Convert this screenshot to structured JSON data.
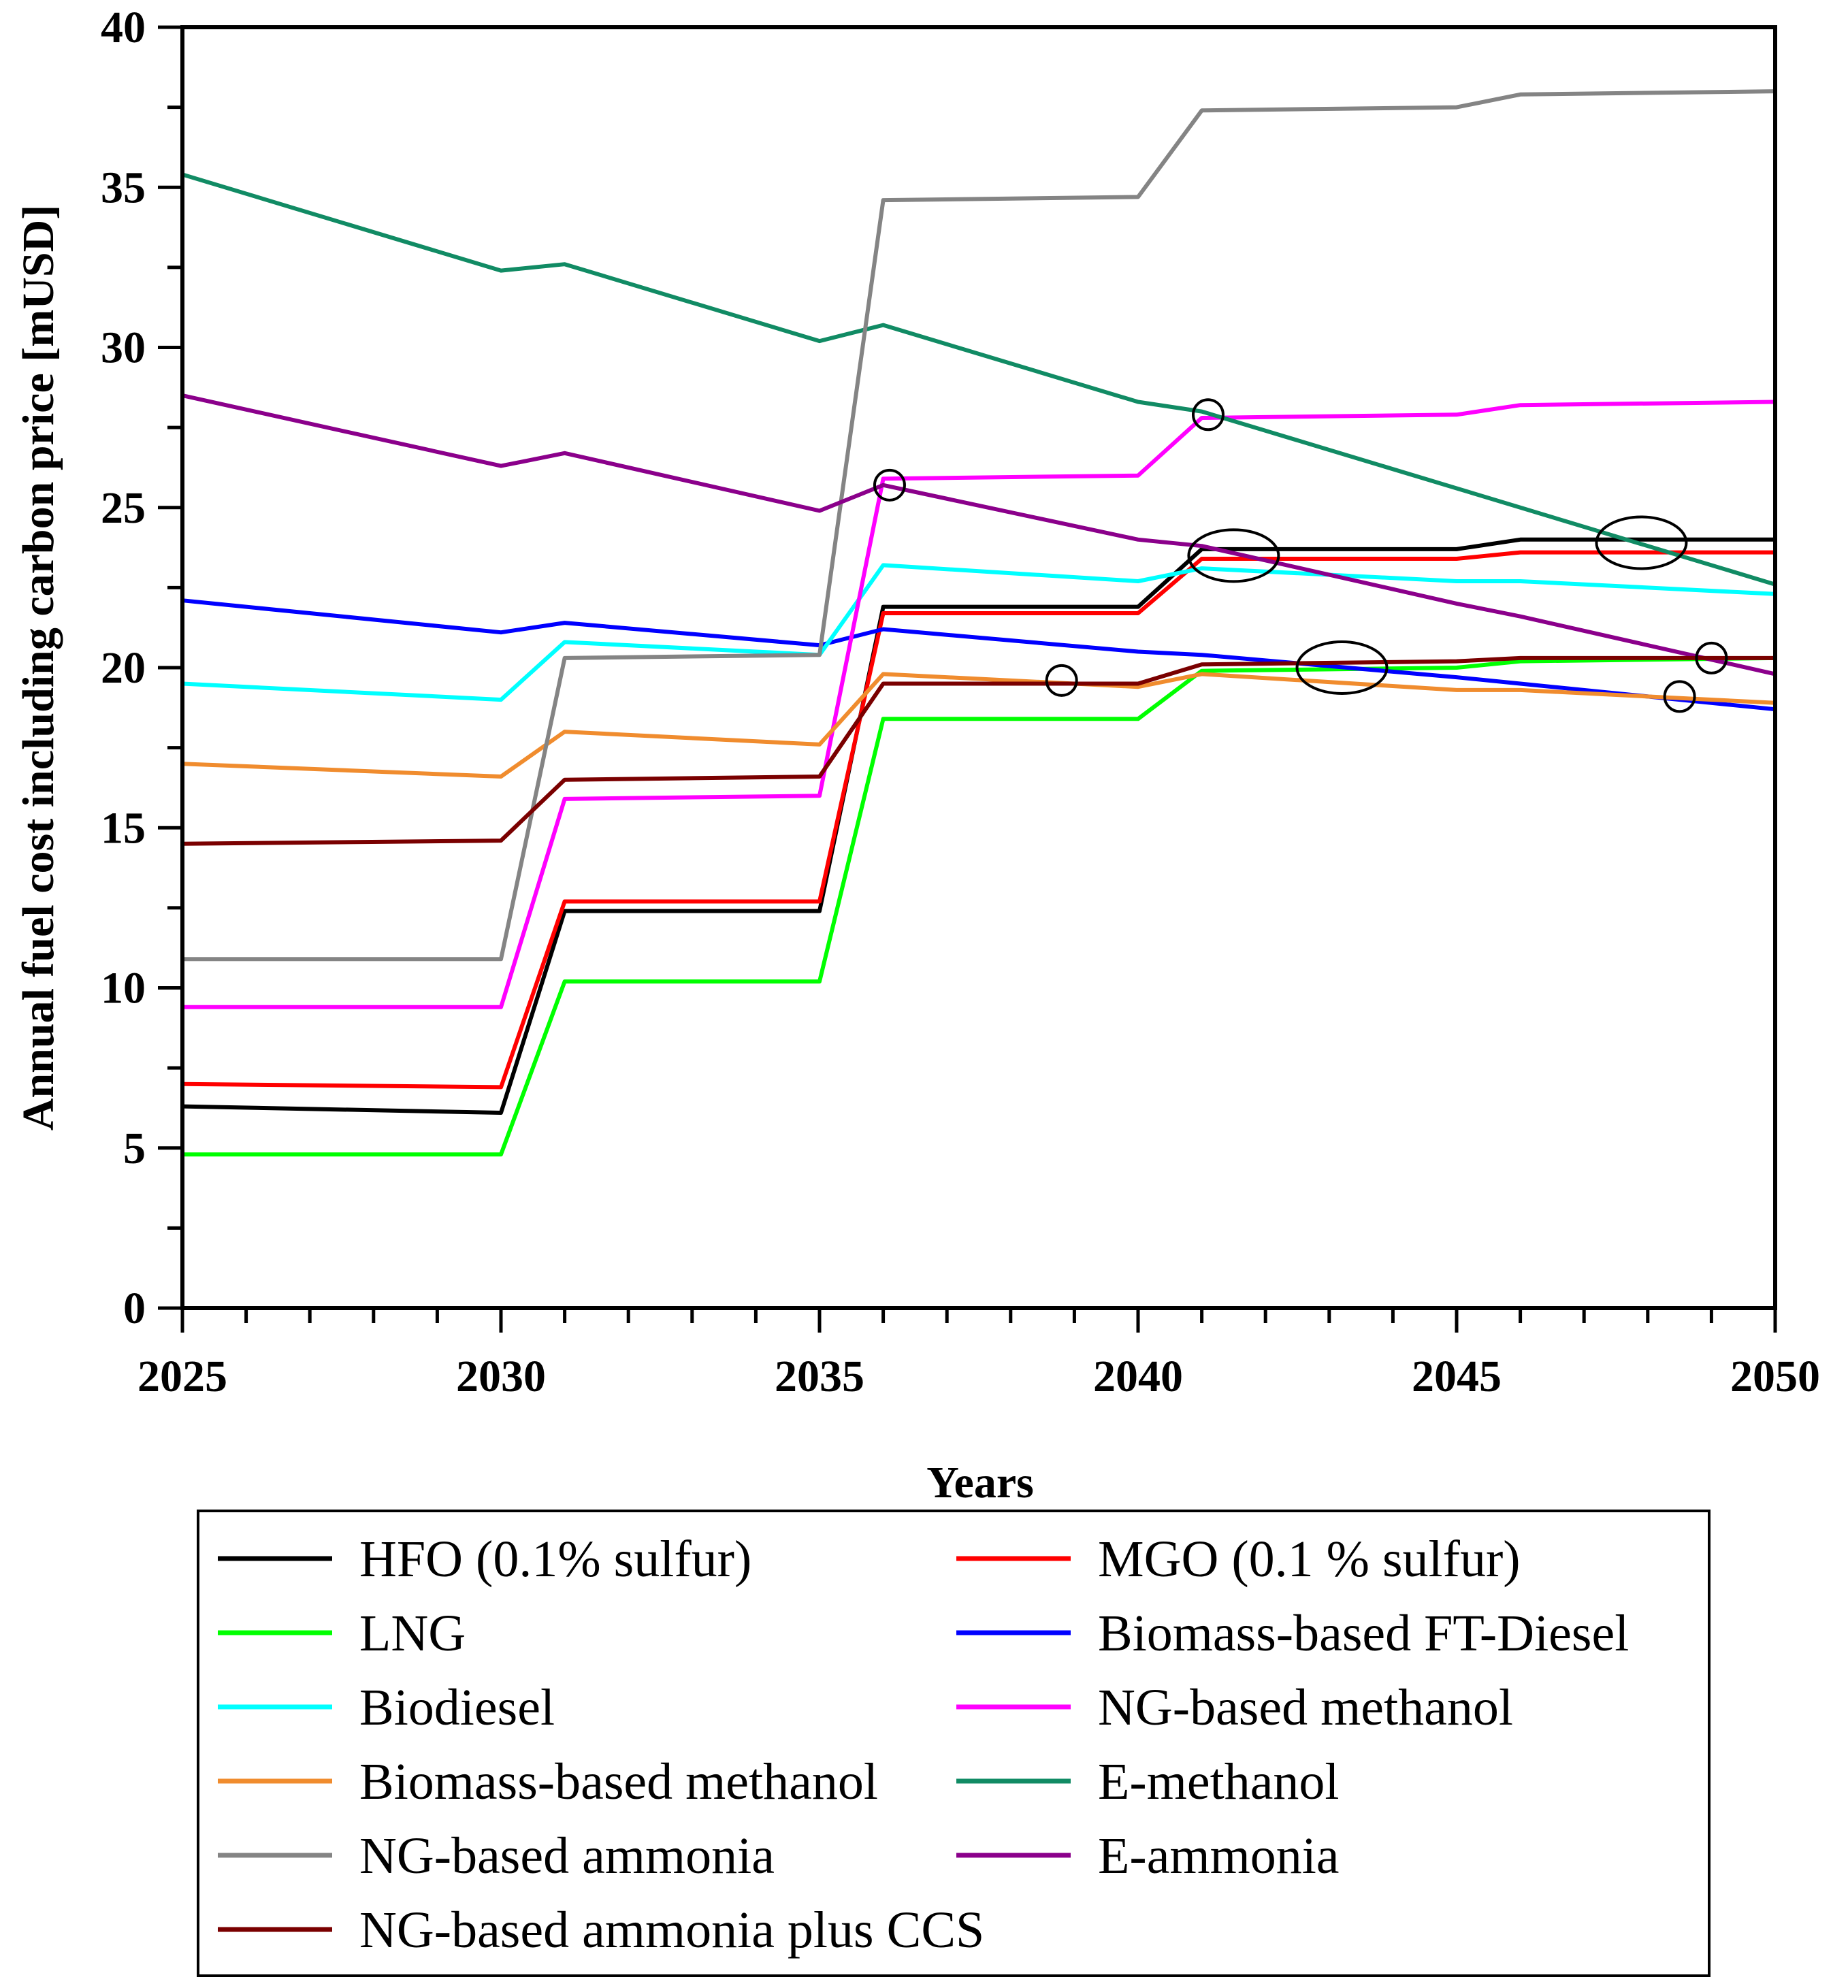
{
  "chart_data": {
    "type": "line",
    "title": "",
    "xlabel": "Years",
    "ylabel": "Annual fuel cost including carbon price [mUSD]",
    "xlim": [
      2025,
      2050
    ],
    "ylim": [
      0,
      40
    ],
    "xticks": [
      "2025",
      "2030",
      "2035",
      "2040",
      "2045",
      "2050"
    ],
    "yticks": [
      "0",
      "5",
      "10",
      "15",
      "20",
      "25",
      "30",
      "35",
      "40"
    ],
    "x": [
      2025,
      2030,
      2031,
      2035,
      2036,
      2040,
      2041,
      2045,
      2046,
      2050
    ],
    "series": [
      {
        "name": "HFO (0.1% sulfur)",
        "color": "#000000",
        "values": [
          6.3,
          6.1,
          12.4,
          12.4,
          21.9,
          21.9,
          23.7,
          23.7,
          24.0,
          24.0
        ]
      },
      {
        "name": "MGO (0.1 % sulfur)",
        "color": "#ff0000",
        "values": [
          7.0,
          6.9,
          12.7,
          12.7,
          21.7,
          21.7,
          23.4,
          23.4,
          23.6,
          23.6
        ]
      },
      {
        "name": "LNG",
        "color": "#00ff00",
        "values": [
          4.8,
          4.8,
          10.2,
          10.2,
          18.4,
          18.4,
          19.9,
          20.0,
          20.2,
          20.3
        ]
      },
      {
        "name": "Biomass-based FT-Diesel",
        "color": "#0000ff",
        "values": [
          22.1,
          21.1,
          21.4,
          20.7,
          21.2,
          20.5,
          20.4,
          19.7,
          19.5,
          18.7
        ]
      },
      {
        "name": "Biodiesel",
        "color": "#00ffff",
        "values": [
          19.5,
          19.0,
          20.8,
          20.4,
          23.2,
          22.7,
          23.1,
          22.7,
          22.7,
          22.3
        ]
      },
      {
        "name": "NG-based methanol",
        "color": "#ff00ff",
        "values": [
          9.4,
          9.4,
          15.9,
          16.0,
          25.9,
          26.0,
          27.8,
          27.9,
          28.2,
          28.3
        ]
      },
      {
        "name": "Biomass-based methanol",
        "color": "#f08c2e",
        "values": [
          17.0,
          16.6,
          18.0,
          17.6,
          19.8,
          19.4,
          19.8,
          19.3,
          19.3,
          18.9
        ]
      },
      {
        "name": "E-methanol",
        "color": "#118b64",
        "values": [
          35.4,
          32.4,
          32.6,
          30.2,
          30.7,
          28.3,
          28.0,
          25.6,
          25.0,
          22.6
        ]
      },
      {
        "name": "NG-based ammonia",
        "color": "#848484",
        "values": [
          10.9,
          10.9,
          20.3,
          20.4,
          34.6,
          34.7,
          37.4,
          37.5,
          37.9,
          38.0
        ]
      },
      {
        "name": "E-ammonia",
        "color": "#8b008b",
        "values": [
          28.5,
          26.3,
          26.7,
          24.9,
          25.7,
          24.0,
          23.8,
          22.0,
          21.6,
          19.8
        ]
      },
      {
        "name": "NG-based ammonia plus CCS",
        "color": "#7a0000",
        "values": [
          14.5,
          14.6,
          16.5,
          16.6,
          19.5,
          19.5,
          20.1,
          20.2,
          20.3,
          20.3
        ]
      }
    ],
    "annotations": [
      {
        "type": "circle",
        "x": 2036.1,
        "y": 25.7
      },
      {
        "type": "circle",
        "x": 2041.1,
        "y": 27.9
      },
      {
        "type": "circle",
        "x": 2038.8,
        "y": 19.6
      },
      {
        "type": "ellipse",
        "x": 2041.5,
        "y": 23.5
      },
      {
        "type": "ellipse",
        "x": 2043.2,
        "y": 20.0
      },
      {
        "type": "ellipse",
        "x": 2047.9,
        "y": 23.9
      },
      {
        "type": "circle",
        "x": 2049.0,
        "y": 20.3
      },
      {
        "type": "circle",
        "x": 2048.5,
        "y": 19.1
      }
    ],
    "legend_position": "bottom"
  }
}
